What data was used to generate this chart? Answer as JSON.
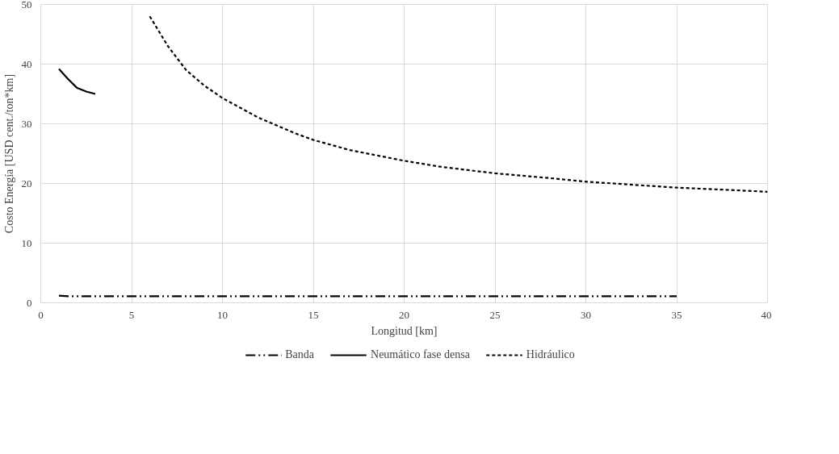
{
  "chart_data": {
    "type": "line",
    "xlabel": "Longitud [km]",
    "ylabel": "Costo Energía [USD cent./ton*km]",
    "xlim": [
      0,
      40
    ],
    "ylim": [
      0,
      50
    ],
    "xticks": [
      0,
      5,
      10,
      15,
      20,
      25,
      30,
      35,
      40
    ],
    "yticks": [
      0,
      10,
      20,
      30,
      40,
      50
    ],
    "grid": true,
    "legend": "bottom",
    "marker": "none",
    "series": [
      {
        "name": "Banda",
        "color": "#000000",
        "line_style": "dashdot",
        "x": [
          1,
          1.5,
          2,
          5,
          10,
          15,
          20,
          25,
          30,
          35
        ],
        "values": [
          1.2,
          1.1,
          1.1,
          1.1,
          1.1,
          1.1,
          1.1,
          1.1,
          1.1,
          1.1
        ]
      },
      {
        "name": "Neumático fase densa",
        "color": "#000000",
        "line_style": "solid",
        "x": [
          1,
          1.5,
          2,
          2.5,
          3
        ],
        "values": [
          39.2,
          37.5,
          36.0,
          35.4,
          35.0
        ]
      },
      {
        "name": "Hidráulico",
        "color": "#000000",
        "line_style": "dashed",
        "x": [
          6,
          7,
          8,
          9,
          10,
          12,
          14,
          15,
          17,
          20,
          22,
          25,
          28,
          30,
          33,
          35,
          38,
          40
        ],
        "values": [
          48,
          43,
          39,
          36.4,
          34.3,
          31,
          28.4,
          27.3,
          25.6,
          23.8,
          22.8,
          21.7,
          20.9,
          20.3,
          19.7,
          19.3,
          18.9,
          18.6
        ]
      }
    ]
  }
}
